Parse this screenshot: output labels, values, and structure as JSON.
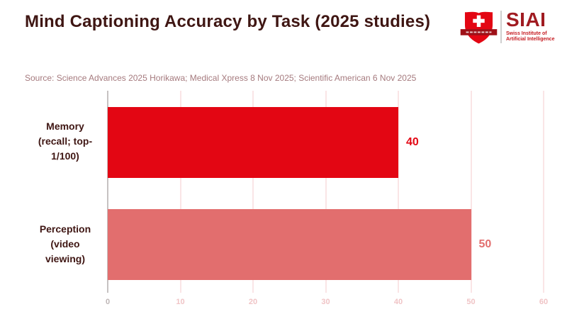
{
  "header": {
    "title": "Mind Captioning Accuracy by Task (2025 studies)",
    "source": "Source: Science Advances 2025 Horikawa; Medical Xpress 8 Nov 2025; Scientific American 6 Nov 2025"
  },
  "logo": {
    "acronym": "SIAI",
    "subtitle_line1": "Swiss Institute of",
    "subtitle_line2": "Artificial Intelligence",
    "shield_color": "#e30613",
    "banner_color": "#9e1118",
    "cross_color": "#ffffff",
    "acronym_color": "#a01b21",
    "subtitle_color": "#c51a20"
  },
  "chart_data": {
    "type": "bar",
    "orientation": "horizontal",
    "title": "Mind Captioning Accuracy by Task (2025 studies)",
    "categories": [
      "Memory (recall; top-1/100)",
      "Perception (video viewing)"
    ],
    "categories_lines": [
      [
        "Memory",
        "(recall; top-",
        "1/100)"
      ],
      [
        "Perception",
        "(video",
        "viewing)"
      ]
    ],
    "values": [
      40,
      50
    ],
    "value_labels": [
      "40",
      "50"
    ],
    "bar_colors": [
      "#e30613",
      "#e26e6e"
    ],
    "value_label_colors": [
      "#e30613",
      "#e26e6e"
    ],
    "xlim": [
      0,
      60
    ],
    "xticks": [
      0,
      10,
      20,
      30,
      40,
      50,
      60
    ],
    "grid": true,
    "legend": false,
    "category_label_color": "#3f1613",
    "gridline_color": "#fae5e6",
    "zero_line_color": "#c6c2c2",
    "tick_label_color": "#f0c4c6",
    "zero_tick_label_color": "#beb6b6"
  }
}
